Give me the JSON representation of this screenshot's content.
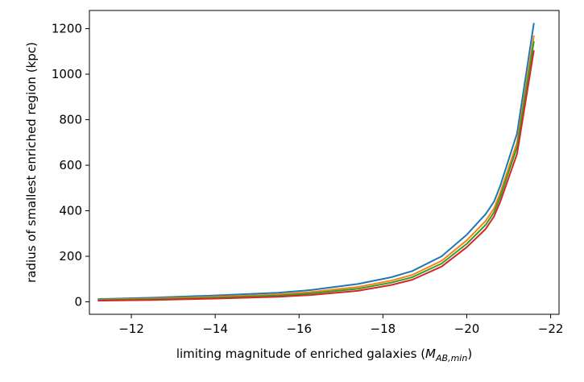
{
  "chart_data": {
    "type": "line",
    "xlabel": "limiting magnitude of enriched galaxies (",
    "xlabel_math": "M",
    "xlabel_sub": "AB,min",
    "xlabel_end": ")",
    "ylabel": "radius of smallest enriched region (kpc)",
    "xlim": [
      -11.0,
      -22.2
    ],
    "ylim": [
      -55,
      1280
    ],
    "xticks": [
      -12,
      -14,
      -16,
      -18,
      -20,
      -22
    ],
    "xtick_labels": [
      "−12",
      "−14",
      "−16",
      "−18",
      "−20",
      "−22"
    ],
    "yticks": [
      0,
      200,
      400,
      600,
      800,
      1000,
      1200
    ],
    "ytick_labels": [
      "0",
      "200",
      "400",
      "600",
      "800",
      "1000",
      "1200"
    ],
    "grid": false,
    "legend": "none",
    "series": [
      {
        "color": "#1f77b4",
        "x": [
          -11.2,
          -12.5,
          -14.0,
          -15.5,
          -16.3,
          -17.4,
          -18.2,
          -18.7,
          -19.4,
          -20.0,
          -20.45,
          -20.65,
          -20.8,
          -21.2,
          -21.6
        ],
        "y": [
          12,
          18,
          28,
          40,
          52,
          78,
          108,
          135,
          200,
          295,
          385,
          440,
          510,
          740,
          1225
        ]
      },
      {
        "color": "#ff7f0e",
        "x": [
          -11.2,
          -12.5,
          -14.0,
          -15.5,
          -16.3,
          -17.4,
          -18.2,
          -18.7,
          -19.4,
          -20.0,
          -20.45,
          -20.65,
          -20.8,
          -21.2,
          -21.6
        ],
        "y": [
          9,
          14,
          22,
          32,
          43,
          65,
          93,
          118,
          180,
          270,
          355,
          410,
          480,
          700,
          1170
        ]
      },
      {
        "color": "#2ca02c",
        "x": [
          -11.2,
          -12.5,
          -14.0,
          -15.5,
          -16.3,
          -17.4,
          -18.2,
          -18.7,
          -19.4,
          -20.0,
          -20.45,
          -20.65,
          -20.8,
          -21.2,
          -21.6
        ],
        "y": [
          7,
          11,
          18,
          27,
          37,
          57,
          84,
          108,
          168,
          255,
          338,
          393,
          462,
          680,
          1145
        ]
      },
      {
        "color": "#d62728",
        "x": [
          -11.2,
          -12.5,
          -14.0,
          -15.5,
          -16.3,
          -17.4,
          -18.2,
          -18.7,
          -19.4,
          -20.0,
          -20.45,
          -20.65,
          -20.8,
          -21.2,
          -21.6
        ],
        "y": [
          5,
          8,
          14,
          22,
          30,
          48,
          74,
          97,
          155,
          240,
          320,
          375,
          440,
          650,
          1105
        ]
      }
    ]
  }
}
